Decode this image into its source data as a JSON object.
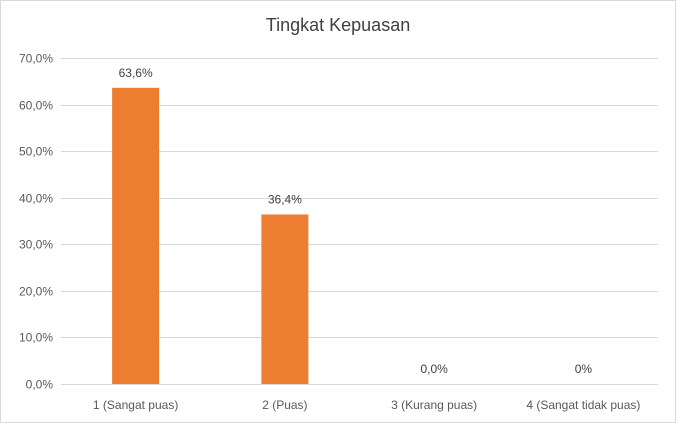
{
  "chart_data": {
    "type": "bar",
    "title": "Tingkat Kepuasan",
    "xlabel": "",
    "ylabel": "",
    "categories": [
      "1 (Sangat puas)",
      "2 (Puas)",
      "3 (Kurang puas)",
      "4 (Sangat tidak puas)"
    ],
    "values": [
      63.6,
      36.4,
      0.0,
      0.0
    ],
    "data_labels": [
      "63,6%",
      "36,4%",
      "0,0%",
      "0%"
    ],
    "ylim": [
      0,
      70
    ],
    "yticks": [
      0,
      10,
      20,
      30,
      40,
      50,
      60,
      70
    ],
    "ytick_labels": [
      "0,0%",
      "10,0%",
      "20,0%",
      "30,0%",
      "40,0%",
      "50,0%",
      "60,0%",
      "70,0%"
    ],
    "grid": true,
    "legend": "none",
    "bar_color": "#ed7d31"
  }
}
